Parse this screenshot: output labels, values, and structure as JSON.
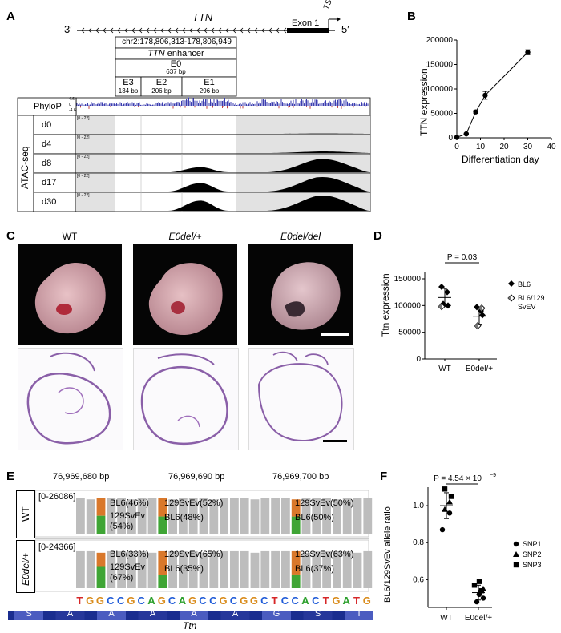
{
  "panels": {
    "a": "A",
    "b": "B",
    "c": "C",
    "d": "D",
    "e": "E",
    "f": "F"
  },
  "panelA": {
    "gene": "TTN",
    "three_prime": "3′",
    "five_prime": "5′",
    "exon": "Exon 1",
    "tss": "TSS",
    "coords": "chr2:178,806,313-178,806,949",
    "enhancer_gene": "TTN",
    "enhancer_word": " enhancer",
    "e0": "E0",
    "e0_bp": "637 bp",
    "subregions": [
      {
        "name": "E3",
        "bp": "134 bp"
      },
      {
        "name": "E2",
        "bp": "206 bp"
      },
      {
        "name": "E1",
        "bp": "296 bp"
      }
    ],
    "phylop": "PhyloP",
    "phylop_scale": [
      "4.6",
      "0",
      "-4.6"
    ],
    "atac_label": "ATAC-seq",
    "range": "[0 - 22]",
    "tracks": [
      "d0",
      "d4",
      "d8",
      "d17",
      "d30"
    ]
  },
  "panelB": {
    "ylabel": "TTN expression",
    "xlabel": "Differentiation day",
    "yticks": [
      "0",
      "50000",
      "100000",
      "150000",
      "200000"
    ],
    "xticks": [
      "0",
      "10",
      "20",
      "30",
      "40"
    ]
  },
  "chart_data": [
    {
      "type": "line",
      "panel": "B",
      "xlabel": "Differentiation day",
      "ylabel": "TTN expression",
      "xlim": [
        0,
        40
      ],
      "ylim": [
        0,
        200000
      ],
      "x": [
        0,
        4,
        8,
        12,
        30
      ],
      "values": [
        1000,
        8000,
        53000,
        87000,
        175000
      ],
      "errors": [
        500,
        1500,
        3000,
        8000,
        5000
      ]
    },
    {
      "type": "scatter",
      "panel": "D",
      "ylabel": "Ttn expression",
      "categories": [
        "WT",
        "E0del/+"
      ],
      "ylim": [
        0,
        150000
      ],
      "annotation": "P = 0.03",
      "legend": [
        "BL6",
        "BL6/129 SvEV"
      ],
      "means": [
        115000,
        80000
      ],
      "sd": [
        17000,
        15000
      ],
      "series": [
        {
          "name": "BL6",
          "points": [
            [
              0,
              135000
            ],
            [
              0,
              125000
            ],
            [
              0,
              103000
            ],
            [
              0,
              100000
            ],
            [
              1,
              97000
            ],
            [
              1,
              90000
            ],
            [
              1,
              82000
            ]
          ]
        },
        {
          "name": "BL6/129 SvEV",
          "points": [
            [
              0,
              98000
            ],
            [
              1,
              95000
            ],
            [
              1,
              62000
            ]
          ]
        }
      ]
    },
    {
      "type": "scatter",
      "panel": "F",
      "ylabel": "BL6/129SvEv allele ratio",
      "categories": [
        "WT",
        "E0del/+"
      ],
      "ylim": [
        0.45,
        1.1
      ],
      "annotation": "P = 4.54 × 10",
      "annotation_exp": "−9",
      "legend": [
        "SNP1",
        "SNP2",
        "SNP3"
      ],
      "means": [
        1.0,
        0.53
      ],
      "sd": [
        0.07,
        0.04
      ],
      "series": [
        {
          "name": "SNP1",
          "points": [
            [
              0,
              0.87
            ],
            [
              0,
              0.96
            ],
            [
              1,
              0.48
            ],
            [
              1,
              0.5
            ],
            [
              1,
              0.52
            ]
          ]
        },
        {
          "name": "SNP2",
          "points": [
            [
              0,
              1.02
            ],
            [
              0,
              0.98
            ],
            [
              1,
              0.55
            ],
            [
              1,
              0.53
            ]
          ]
        },
        {
          "name": "SNP3",
          "points": [
            [
              0,
              1.09
            ],
            [
              0,
              1.05
            ],
            [
              1,
              0.59
            ],
            [
              1,
              0.57
            ],
            [
              1,
              0.54
            ]
          ]
        }
      ]
    }
  ],
  "panelC": {
    "cols": [
      "WT",
      "E0del/+",
      "E0del/del"
    ]
  },
  "panelD": {
    "ylabel": "Ttn expression",
    "yticks": [
      "0",
      "50000",
      "100000",
      "150000"
    ],
    "p": "P = 0.03",
    "legend": [
      "BL6",
      "BL6/129",
      "SvEV"
    ],
    "xcats": [
      "WT",
      "E0del/+"
    ]
  },
  "panelE": {
    "positions": [
      "76,969,680 bp",
      "76,969,690 bp",
      "76,969,700 bp"
    ],
    "wt_label": "WT",
    "mut_label": "E0del/+",
    "wt_range": "[0-26086]",
    "mut_range": "[0-24366]",
    "wt_alleles": [
      [
        "BL6(46%)",
        "129SvEv",
        "(54%)"
      ],
      [
        "129SvEv(52%)",
        "BL6(48%)"
      ],
      [
        "129SvEv(50%)",
        "BL6(50%)"
      ]
    ],
    "mut_alleles": [
      [
        "BL6(33%)",
        "129SvEv",
        "(67%)"
      ],
      [
        "129SvEv(65%)",
        "BL6(35%)"
      ],
      [
        "129SvEv(63%)",
        "BL6(37%)"
      ]
    ],
    "sequence": [
      "T",
      "G",
      "G",
      "C",
      "C",
      "G",
      "C",
      "A",
      "G",
      "C",
      "A",
      "G",
      "C",
      "C",
      "G",
      "C",
      "G",
      "G",
      "C",
      "T",
      "C",
      "C",
      "A",
      "C",
      "T",
      "G",
      "A",
      "T",
      "G"
    ],
    "aminoacids": [
      "S",
      "A",
      "A",
      "A",
      "A",
      "A",
      "G",
      "S",
      "I"
    ],
    "gene": "Ttn"
  },
  "panelF": {
    "ylabel": "BL6/129SvEv allele ratio",
    "yticks": [
      "0.6",
      "0.8",
      "1.0"
    ],
    "p": "P = 4.54 × 10",
    "p_exp": "−9",
    "legend": [
      "SNP1",
      "SNP2",
      "SNP3"
    ],
    "xcats": [
      "WT",
      "E0del/+"
    ]
  }
}
